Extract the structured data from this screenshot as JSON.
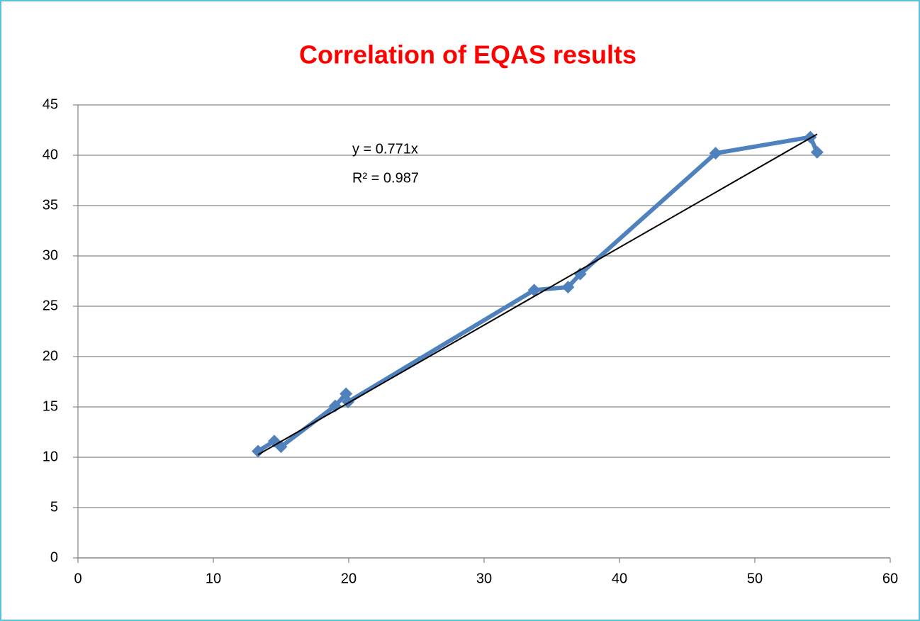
{
  "chart_data": {
    "type": "line",
    "title": "Correlation of EQAS results",
    "series": [
      {
        "color": "#4f81bd",
        "x": [
          13.3,
          14.5,
          15.0,
          19.0,
          19.8,
          19.95,
          33.7,
          36.2,
          37.1,
          47.1,
          54.1,
          54.6
        ],
        "values": [
          10.6,
          11.6,
          11.05,
          15.1,
          16.3,
          15.5,
          26.6,
          26.9,
          28.2,
          40.2,
          41.8,
          40.3
        ]
      }
    ],
    "trendline": {
      "slope": 0.771,
      "color": "#000000",
      "equation": "y = 0.771x",
      "r_squared": "R² = 0.987"
    },
    "xlim": [
      0,
      60
    ],
    "xticks": [
      0,
      10,
      20,
      30,
      40,
      50,
      60
    ],
    "ylim": [
      0,
      45
    ],
    "yticks": [
      0,
      5,
      10,
      15,
      20,
      25,
      30,
      35,
      40,
      45
    ],
    "grid": true
  }
}
